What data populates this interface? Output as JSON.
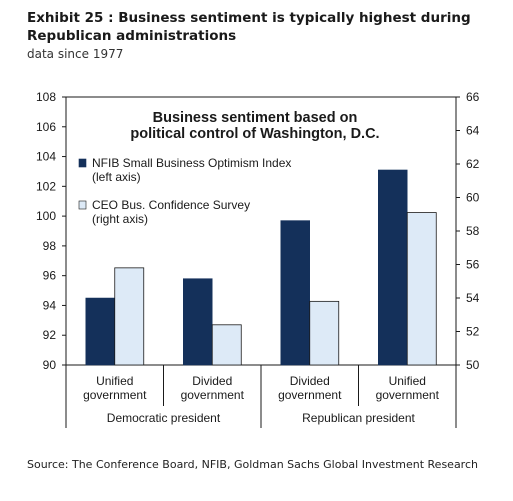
{
  "exhibit": {
    "title": "Exhibit 25 : Business sentiment is typically highest during Republican administrations",
    "subtitle": "data since 1977",
    "source": "Source: The Conference Board, NFIB, Goldman Sachs Global Investment Research"
  },
  "colors": {
    "nfib": "#14305a",
    "ceo": "#ddeaf7",
    "ceo_stroke": "#1a1a1a",
    "axis": "#1a1a1a"
  },
  "chart_data": {
    "type": "bar",
    "title": "Business sentiment based on political control of Washington, D.C.",
    "title_lines": [
      "Business sentiment based on",
      "political control of Washington, D.C."
    ],
    "categories": [
      [
        "Unified",
        "government"
      ],
      [
        "Divided",
        "government"
      ],
      [
        "Divided",
        "government"
      ],
      [
        "Unified",
        "government"
      ]
    ],
    "groups": [
      {
        "label": "Democratic president",
        "span": [
          0,
          1
        ]
      },
      {
        "label": "Republican president",
        "span": [
          2,
          3
        ]
      }
    ],
    "series": [
      {
        "name_lines": [
          "NFIB Small Business Optimism Index",
          "(left axis)"
        ],
        "axis": "left",
        "values": [
          94.5,
          95.8,
          99.7,
          103.1
        ]
      },
      {
        "name_lines": [
          "CEO Bus. Confidence Survey",
          "(right axis)"
        ],
        "axis": "right",
        "values": [
          55.8,
          52.4,
          53.8,
          59.1
        ]
      }
    ],
    "left_axis": {
      "min": 90,
      "max": 108,
      "step": 2
    },
    "right_axis": {
      "min": 50,
      "max": 66,
      "step": 2
    },
    "legend_position": "top-left",
    "grid": false
  }
}
